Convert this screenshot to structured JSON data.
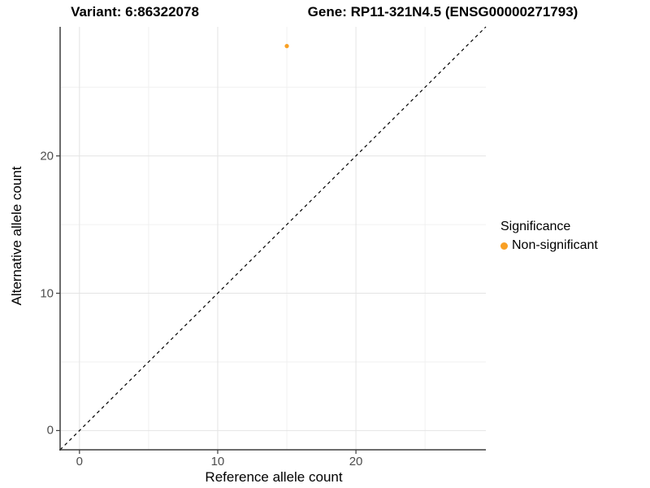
{
  "titles": {
    "variant": "Variant: 6:86322078",
    "gene": "Gene: RP11-321N4.5 (ENSG00000271793)"
  },
  "chart_data": {
    "type": "scatter",
    "title": "Variant: 6:86322078   Gene: RP11-321N4.5 (ENSG00000271793)",
    "xlabel": "Reference allele count",
    "ylabel": "Alternative allele count",
    "xlim": [
      -1.4,
      29.4
    ],
    "ylim": [
      -1.4,
      29.4
    ],
    "x_ticks": [
      0,
      10,
      20
    ],
    "y_ticks": [
      0,
      10,
      20
    ],
    "x_minor_ticks": [
      5,
      15,
      25
    ],
    "y_minor_ticks": [
      5,
      15,
      25
    ],
    "grid": true,
    "points": [
      {
        "x": 15,
        "y": 28,
        "series": "Non-significant"
      }
    ],
    "series": [
      {
        "name": "Non-significant",
        "color": "#F9A024",
        "values": [
          [
            15,
            28
          ]
        ]
      }
    ],
    "reference_line": {
      "slope": 1,
      "intercept": 0,
      "style": "dashed",
      "color": "#000000"
    },
    "legend": {
      "title": "Significance",
      "position": "right",
      "entries": [
        {
          "label": "Non-significant",
          "color": "#F9A024"
        }
      ]
    },
    "style": {
      "grid_major_color": "#e4e4e4",
      "grid_minor_color": "#f0f0f0",
      "axis_line_color": "#3c3c3c",
      "tick_color": "#3c3c3c",
      "point_radius": 2.6,
      "background": "#ffffff"
    }
  }
}
